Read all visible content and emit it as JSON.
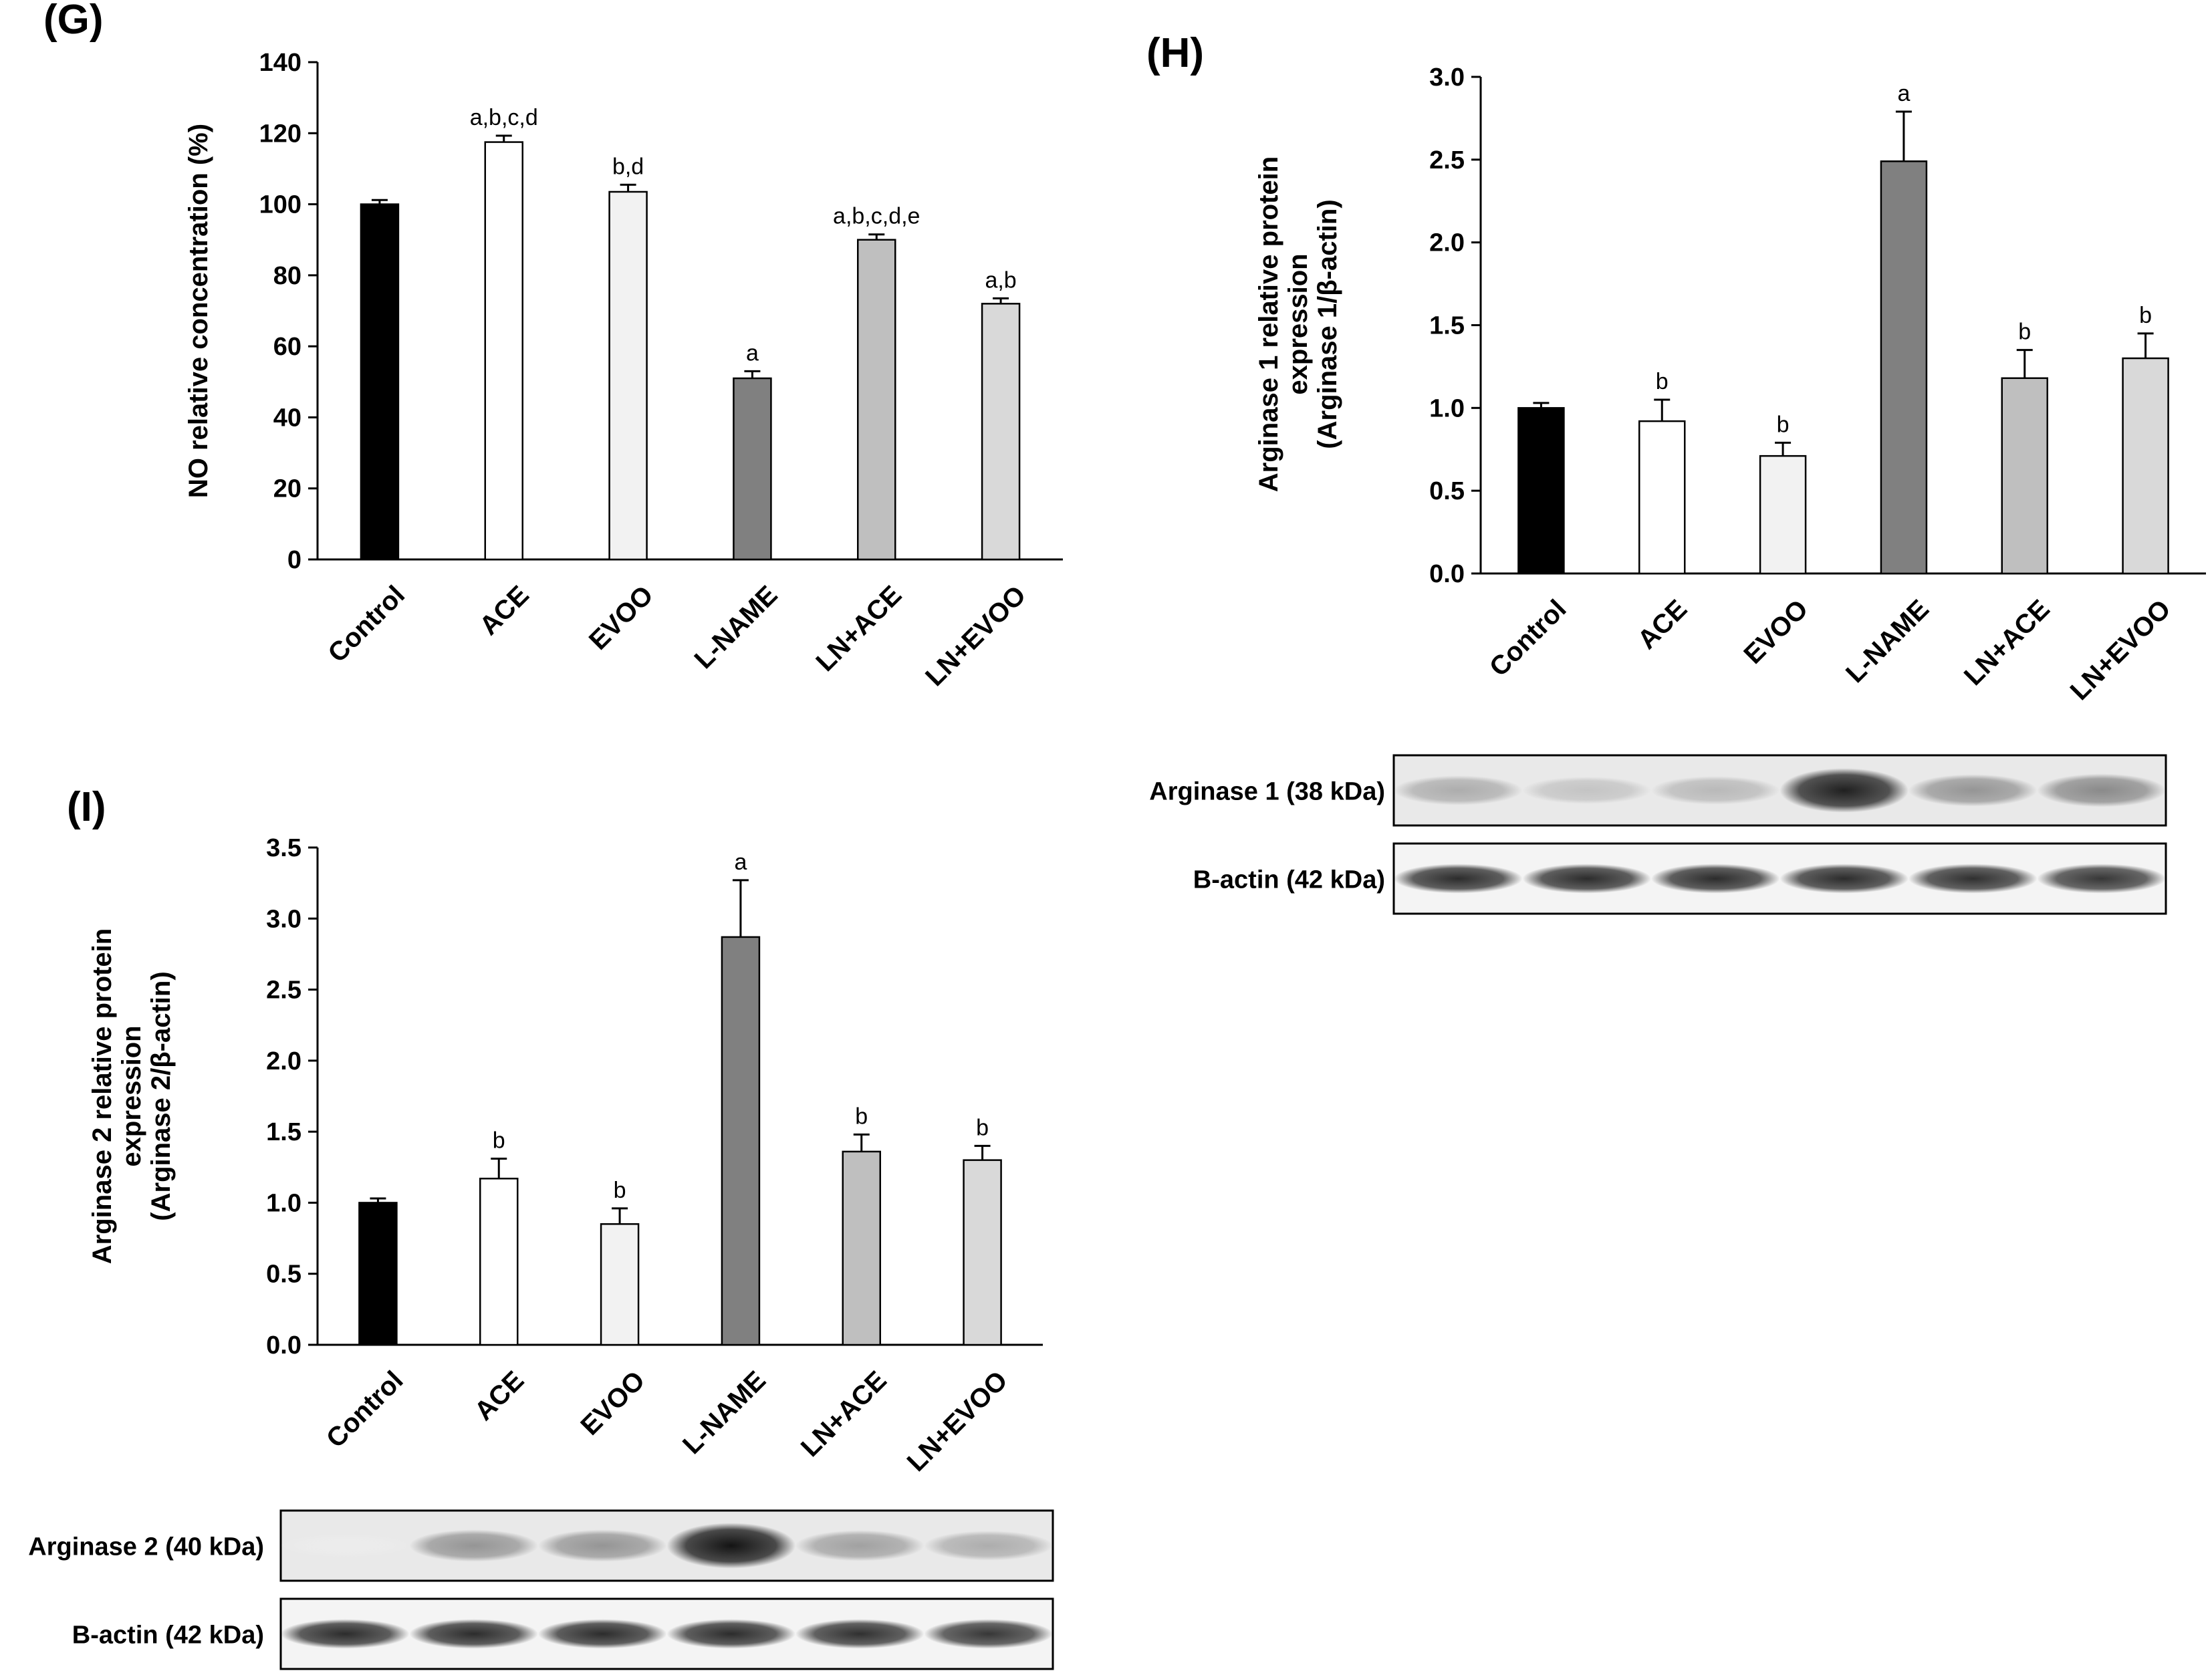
{
  "chart_data": [
    {
      "panel_label": "(G)",
      "type": "bar",
      "categories": [
        "Control",
        "ACE",
        "EVOO",
        "L-NAME",
        "LN+ACE",
        "LN+EVOO"
      ],
      "values": [
        100,
        117.5,
        103.5,
        51,
        90,
        72
      ],
      "errors": [
        1.2,
        1.8,
        2.0,
        2.0,
        1.5,
        1.5
      ],
      "annotations": [
        "",
        "a,b,c,d",
        "b,d",
        "a",
        "a,b,c,d,e",
        "a,b"
      ],
      "colors": [
        "#000000",
        "#ffffff",
        "#f2f2f2",
        "#808080",
        "#bfbfbf",
        "#d9d9d9"
      ],
      "ylabel_lines": [
        "NO relative concentration (%)"
      ],
      "ylim": [
        0,
        140
      ],
      "yticks": [
        "0",
        "20",
        "40",
        "60",
        "80",
        "100",
        "120",
        "140"
      ]
    },
    {
      "panel_label": "(H)",
      "type": "bar",
      "categories": [
        "Control",
        "ACE",
        "EVOO",
        "L-NAME",
        "LN+ACE",
        "LN+EVOO"
      ],
      "values": [
        1.0,
        0.92,
        0.71,
        2.49,
        1.18,
        1.3
      ],
      "errors": [
        0.03,
        0.13,
        0.08,
        0.3,
        0.17,
        0.15
      ],
      "annotations": [
        "",
        "b",
        "b",
        "a",
        "b",
        "b"
      ],
      "colors": [
        "#000000",
        "#ffffff",
        "#f2f2f2",
        "#808080",
        "#bfbfbf",
        "#d9d9d9"
      ],
      "ylabel_lines": [
        "Arginase 1 relative protein",
        "expression",
        "(Arginase 1/β-actin)"
      ],
      "ylim": [
        0,
        3
      ],
      "yticks": [
        "0.0",
        "0.5",
        "1.0",
        "1.5",
        "2.0",
        "2.5",
        "3.0"
      ]
    },
    {
      "panel_label": "(I)",
      "type": "bar",
      "categories": [
        "Control",
        "ACE",
        "EVOO",
        "L-NAME",
        "LN+ACE",
        "LN+EVOO"
      ],
      "values": [
        1.0,
        1.17,
        0.85,
        2.87,
        1.36,
        1.3
      ],
      "errors": [
        0.03,
        0.14,
        0.11,
        0.4,
        0.12,
        0.1
      ],
      "annotations": [
        "",
        "b",
        "b",
        "a",
        "b",
        "b"
      ],
      "colors": [
        "#000000",
        "#ffffff",
        "#f2f2f2",
        "#808080",
        "#bfbfbf",
        "#d9d9d9"
      ],
      "ylabel_lines": [
        "Arginase 2 relative protein",
        "expression",
        "(Arginase 2/β-actin)"
      ],
      "ylim": [
        0,
        3.5
      ],
      "yticks": [
        "0.0",
        "0.5",
        "1.0",
        "1.5",
        "2.0",
        "2.5",
        "3.0",
        "3.5"
      ]
    }
  ],
  "blots": [
    {
      "panel": "(H)",
      "rows": [
        {
          "label": "Arginase 1 (38 kDa)",
          "intensities": [
            0.35,
            0.25,
            0.3,
            0.95,
            0.45,
            0.5
          ]
        },
        {
          "label": "B-actin (42 kDa)",
          "intensities": [
            0.9,
            0.9,
            0.9,
            0.9,
            0.88,
            0.85
          ]
        }
      ]
    },
    {
      "panel": "(I)",
      "rows": [
        {
          "label": "Arginase 2 (40 kDa)",
          "intensities": [
            0.08,
            0.45,
            0.45,
            1.0,
            0.4,
            0.35
          ]
        },
        {
          "label": "B-actin (42 kDa)",
          "intensities": [
            0.9,
            0.9,
            0.9,
            0.9,
            0.88,
            0.85
          ]
        }
      ]
    }
  ]
}
